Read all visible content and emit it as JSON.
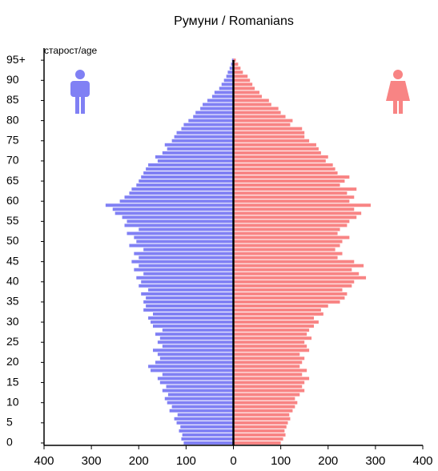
{
  "chart_data": {
    "type": "pyramid",
    "title": "Румуни / Romanians",
    "y_label": "старост/age",
    "categories": [
      "0",
      null,
      null,
      null,
      null,
      "5",
      null,
      null,
      null,
      null,
      "10",
      null,
      null,
      null,
      null,
      "15",
      null,
      null,
      null,
      null,
      "20",
      null,
      null,
      null,
      null,
      "25",
      null,
      null,
      null,
      null,
      "30",
      null,
      null,
      null,
      null,
      "35",
      null,
      null,
      null,
      null,
      "40",
      null,
      null,
      null,
      null,
      "45",
      null,
      null,
      null,
      null,
      "50",
      null,
      null,
      null,
      null,
      "55",
      null,
      null,
      null,
      null,
      "60",
      null,
      null,
      null,
      null,
      "65",
      null,
      null,
      null,
      null,
      "70",
      null,
      null,
      null,
      null,
      "75",
      null,
      null,
      null,
      null,
      "80",
      null,
      null,
      null,
      null,
      "85",
      null,
      null,
      null,
      null,
      "90",
      null,
      null,
      null,
      null,
      "95+"
    ],
    "series": [
      {
        "name": null,
        "side": "left",
        "color": "#8080f4",
        "values": [
          105,
          110,
          108,
          115,
          112,
          120,
          125,
          118,
          135,
          130,
          140,
          145,
          138,
          150,
          142,
          155,
          160,
          150,
          175,
          180,
          165,
          155,
          160,
          170,
          150,
          160,
          155,
          165,
          150,
          170,
          175,
          180,
          170,
          190,
          185,
          190,
          185,
          195,
          180,
          200,
          195,
          205,
          190,
          210,
          200,
          215,
          200,
          210,
          190,
          220,
          205,
          210,
          225,
          200,
          230,
          225,
          235,
          250,
          255,
          270,
          240,
          230,
          220,
          215,
          205,
          200,
          195,
          190,
          185,
          180,
          160,
          165,
          150,
          140,
          145,
          130,
          125,
          120,
          110,
          105,
          95,
          85,
          80,
          70,
          65,
          55,
          45,
          40,
          30,
          25,
          20,
          15,
          12,
          8,
          5,
          3
        ]
      },
      {
        "name": null,
        "side": "right",
        "color": "#f88484",
        "values": [
          100,
          105,
          110,
          108,
          112,
          115,
          120,
          118,
          125,
          130,
          135,
          130,
          140,
          150,
          145,
          150,
          160,
          145,
          155,
          140,
          145,
          150,
          140,
          160,
          155,
          150,
          165,
          155,
          160,
          170,
          180,
          170,
          190,
          185,
          200,
          225,
          235,
          240,
          230,
          250,
          255,
          280,
          265,
          250,
          275,
          255,
          220,
          230,
          215,
          225,
          230,
          245,
          220,
          225,
          240,
          245,
          260,
          270,
          255,
          290,
          245,
          255,
          240,
          260,
          225,
          235,
          245,
          220,
          215,
          210,
          195,
          200,
          185,
          180,
          175,
          160,
          150,
          150,
          145,
          120,
          125,
          110,
          100,
          95,
          80,
          75,
          60,
          55,
          45,
          40,
          35,
          30,
          20,
          15,
          10,
          5
        ]
      }
    ],
    "xlim": [
      -400,
      400
    ],
    "xticks": [
      {
        "value": -400,
        "label": "400"
      },
      {
        "value": -300,
        "label": "300"
      },
      {
        "value": -200,
        "label": "200"
      },
      {
        "value": -100,
        "label": "100"
      },
      0,
      100,
      200,
      300,
      400
    ]
  }
}
